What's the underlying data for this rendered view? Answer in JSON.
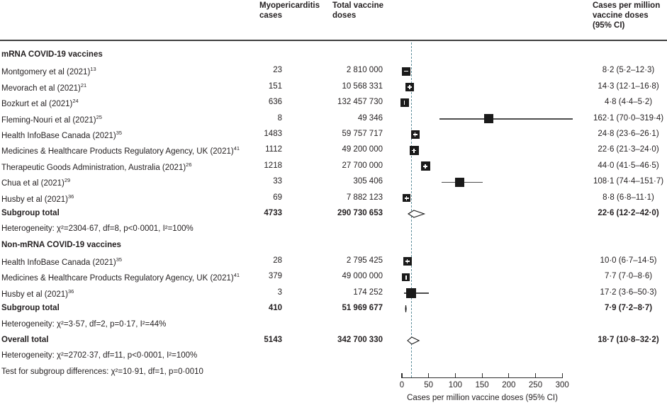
{
  "header": {
    "cases": "Myopericarditis cases",
    "doses": "Total vaccine doses",
    "ci": "Cases per million vaccine doses (95% CI)"
  },
  "colors": {
    "text": "#231f20",
    "marker": "#1a1a1a",
    "ciline": "#4d4d4d",
    "dashed": "#5f8f9c",
    "rule": "#3f3f3f"
  },
  "chart_data": {
    "type": "forest",
    "overall_reference_value": 18.7,
    "axis": {
      "label": "Cases per million vaccine doses (95% CI)",
      "ticks": [
        0,
        50,
        100,
        150,
        200,
        250,
        300
      ],
      "xlim": [
        0,
        300
      ]
    },
    "rows": [
      {
        "style": "section",
        "label": "mRNA COVID-19 vaccines"
      },
      {
        "style": "study",
        "label": "Montgomery et al (2021)",
        "sup": "13",
        "cases": "23",
        "doses": "2 810 000",
        "ci": "8·2 (5·2–12·3)",
        "marker": {
          "est": 8.2,
          "lo": 5.2,
          "hi": 12.3,
          "size": 12,
          "inner": "h"
        }
      },
      {
        "style": "study",
        "label": "Mevorach et al (2021)",
        "sup": "21",
        "cases": "151",
        "doses": "10 568 331",
        "ci": "14·3 (12·1–16·8)",
        "marker": {
          "est": 14.3,
          "lo": 12.1,
          "hi": 16.8,
          "size": 12,
          "inner": "plus"
        }
      },
      {
        "style": "study",
        "label": "Bozkurt et al (2021)",
        "sup": "24",
        "cases": "636",
        "doses": "132 457 730",
        "ci": "4·8 (4·4–5·2)",
        "marker": {
          "est": 4.8,
          "lo": 4.4,
          "hi": 5.2,
          "size": 12,
          "inner": "v"
        }
      },
      {
        "style": "study",
        "label": "Fleming-Nouri et al (2021)",
        "sup": "25",
        "cases": "8",
        "doses": "49 346",
        "ci": "162·1 (70·0–319·4)",
        "marker": {
          "est": 162.1,
          "lo": 70.0,
          "hi": 319.4,
          "size": 13,
          "inner": null
        }
      },
      {
        "style": "study",
        "label": "Health InfoBase Canada (2021)",
        "sup": "35",
        "cases": "1483",
        "doses": "59 757 717",
        "ci": "24·8 (23·6–26·1)",
        "marker": {
          "est": 24.8,
          "lo": 23.6,
          "hi": 26.1,
          "size": 12,
          "inner": "plus"
        }
      },
      {
        "style": "study",
        "label": "Medicines & Healthcare Products Regulatory Agency, UK (2021)",
        "sup": "41",
        "cases": "1112",
        "doses": "49 200 000",
        "ci": "22·6 (21·3–24·0)",
        "marker": {
          "est": 22.6,
          "lo": 21.3,
          "hi": 24.0,
          "size": 13,
          "inner": "plus"
        }
      },
      {
        "style": "study",
        "label": "Therapeutic Goods Administration, Australia (2021)",
        "sup": "26",
        "cases": "1218",
        "doses": "27 700 000",
        "ci": "44·0 (41·5–46·5)",
        "marker": {
          "est": 44.0,
          "lo": 41.5,
          "hi": 46.5,
          "size": 13,
          "inner": "plus"
        }
      },
      {
        "style": "study",
        "label": "Chua et al (2021)",
        "sup": "29",
        "cases": "33",
        "doses": "305 406",
        "ci": "108·1 (74·4–151·7)",
        "marker": {
          "est": 108.1,
          "lo": 74.4,
          "hi": 151.7,
          "size": 13,
          "inner": null
        }
      },
      {
        "style": "study",
        "label": "Husby et al (2021)",
        "sup": "36",
        "cases": "69",
        "doses": "7 882 123",
        "ci": "8·8 (6·8–11·1)",
        "marker": {
          "est": 8.8,
          "lo": 6.8,
          "hi": 11.1,
          "size": 11,
          "inner": "plus"
        }
      },
      {
        "style": "total",
        "label": "Subgroup total",
        "cases": "4733",
        "doses": "290 730 653",
        "ci": "22·6 (12·2–42·0)",
        "diamond": {
          "est": 22.6,
          "lo": 12.2,
          "hi": 42.0,
          "fill": "open"
        }
      },
      {
        "style": "het",
        "label": "Heterogeneity: χ²=2304·67, df=8, p<0·0001, I²=100%"
      },
      {
        "style": "section",
        "label": "Non-mRNA COVID-19 vaccines"
      },
      {
        "style": "study",
        "label": "Health InfoBase Canada (2021)",
        "sup": "35",
        "cases": "28",
        "doses": "2 795 425",
        "ci": "10·0 (6·7–14·5)",
        "marker": {
          "est": 10.0,
          "lo": 6.7,
          "hi": 14.5,
          "size": 12,
          "inner": "plus"
        }
      },
      {
        "style": "study",
        "label": "Medicines & Healthcare Products Regulatory Agency, UK (2021)",
        "sup": "41",
        "cases": "379",
        "doses": "49 000 000",
        "ci": "7·7 (7·0–8·6)",
        "marker": {
          "est": 7.7,
          "lo": 7.0,
          "hi": 8.6,
          "size": 11,
          "inner": "v"
        }
      },
      {
        "style": "study",
        "label": "Husby et al (2021)",
        "sup": "36",
        "cases": "3",
        "doses": "174 252",
        "ci": "17·2 (3·6–50·3)",
        "marker": {
          "est": 17.2,
          "lo": 3.6,
          "hi": 50.3,
          "size": 14,
          "inner": null
        }
      },
      {
        "style": "total",
        "label": "Subgroup total",
        "cases": "410",
        "doses": "51 969 677",
        "ci": "7·9 (7·2–8·7)",
        "diamond": {
          "est": 7.9,
          "lo": 7.2,
          "hi": 8.7,
          "fill": "filled"
        }
      },
      {
        "style": "het",
        "label": "Heterogeneity: χ²=3·57, df=2, p=0·17, I²=44%"
      },
      {
        "style": "total",
        "label": "Overall total",
        "cases": "5143",
        "doses": "342 700 330",
        "ci": "18·7 (10·8–32·2)",
        "diamond": {
          "est": 18.7,
          "lo": 10.8,
          "hi": 32.2,
          "fill": "open"
        }
      },
      {
        "style": "het",
        "label": "Heterogeneity: χ²=2702·37, df=11, p<0·0001, I²=100%"
      },
      {
        "style": "het",
        "label": "Test for subgroup differences: χ²=10·91, df=1, p=0·0010"
      }
    ]
  }
}
